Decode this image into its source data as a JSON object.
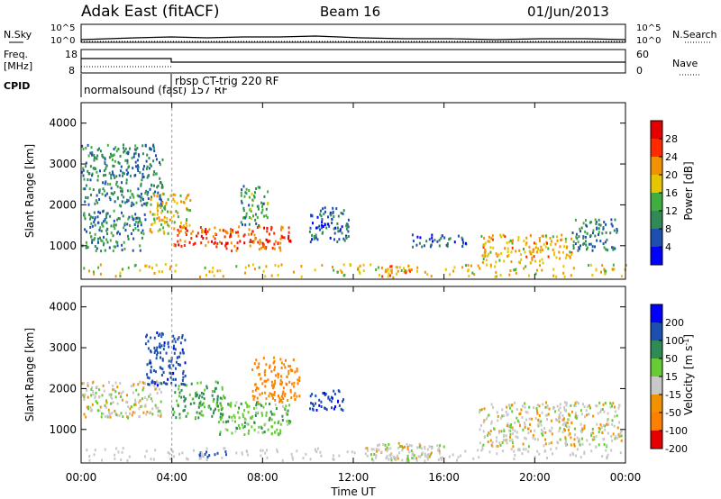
{
  "header": {
    "station": "Adak East (fitACF)",
    "beam": "Beam 16",
    "date": "01/Jun/2013"
  },
  "noise_panel": {
    "left_label": "N.Sky",
    "right_label": "N.Search",
    "ticks_top": "10^5",
    "ticks_bottom": "10^0"
  },
  "freq_panel": {
    "left_label_1": "Freq.",
    "left_label_2": "[MHz]",
    "right_label": "Nave",
    "left_ticks": [
      "18",
      "8"
    ],
    "right_ticks": [
      "60",
      "0"
    ]
  },
  "cpid": {
    "label": "CPID",
    "modes": [
      {
        "name": "normalsound (fast) 157 RF",
        "start_hour": 0
      },
      {
        "name": "rbsp CT-trig 220 RF",
        "start_hour": 4
      }
    ]
  },
  "colors": {
    "power": [
      "#0000ff",
      "#1c4fb0",
      "#2f8a55",
      "#3fae3f",
      "#e6c600",
      "#f39200",
      "#ff2a00",
      "#e60000"
    ],
    "velocity": [
      "#0000ff",
      "#1c4fb0",
      "#2f8a55",
      "#66cc33",
      "#c8c8c8",
      "#f39200",
      "#ff7f00",
      "#e60000"
    ]
  },
  "chart_data": [
    {
      "type": "heatmap",
      "title": "",
      "xlabel": "Time UT",
      "ylabel": "Slant Range [km]",
      "xlim": [
        0,
        24
      ],
      "ylim": [
        180,
        4500
      ],
      "x_ticks": [
        "00:00",
        "04:00",
        "08:00",
        "12:00",
        "16:00",
        "20:00",
        "00:00"
      ],
      "y_ticks": [
        "1000",
        "2000",
        "3000",
        "4000"
      ],
      "colorbar": {
        "label": "Power [dB]",
        "ticks": [
          "4",
          "8",
          "12",
          "16",
          "20",
          "24",
          "28"
        ],
        "range": [
          0,
          30
        ]
      },
      "regions": [
        {
          "t0": 0.0,
          "t1": 3.6,
          "r0": 2000,
          "r1": 3500,
          "value": 9
        },
        {
          "t0": 0.0,
          "t1": 2.8,
          "r0": 900,
          "r1": 1900,
          "value": 10
        },
        {
          "t0": 3.0,
          "t1": 4.8,
          "r0": 1300,
          "r1": 2300,
          "value": 19
        },
        {
          "t0": 4.0,
          "t1": 6.6,
          "r0": 1000,
          "r1": 1500,
          "value": 25
        },
        {
          "t0": 6.2,
          "t1": 9.2,
          "r0": 900,
          "r1": 1500,
          "value": 26
        },
        {
          "t0": 7.0,
          "t1": 8.2,
          "r0": 1500,
          "r1": 2500,
          "value": 12
        },
        {
          "t0": 10.0,
          "t1": 11.8,
          "r0": 1100,
          "r1": 2000,
          "value": 7
        },
        {
          "t0": 13.2,
          "t1": 14.6,
          "r0": 250,
          "r1": 600,
          "value": 22
        },
        {
          "t0": 14.5,
          "t1": 17.0,
          "r0": 1000,
          "r1": 1300,
          "value": 7
        },
        {
          "t0": 17.6,
          "t1": 21.6,
          "r0": 600,
          "r1": 1300,
          "value": 20
        },
        {
          "t0": 21.6,
          "t1": 23.6,
          "r0": 900,
          "r1": 1700,
          "value": 9
        }
      ]
    },
    {
      "type": "heatmap",
      "title": "",
      "xlabel": "Time UT",
      "ylabel": "Slant Range [km]",
      "xlim": [
        0,
        24
      ],
      "ylim": [
        180,
        4500
      ],
      "x_ticks": [
        "00:00",
        "04:00",
        "08:00",
        "12:00",
        "16:00",
        "20:00",
        "00:00"
      ],
      "y_ticks": [
        "1000",
        "2000",
        "3000",
        "4000"
      ],
      "colorbar": {
        "label": "Velocity [m s^-1]",
        "ticks": [
          "200",
          "100",
          "50",
          "15",
          "-15",
          "-50",
          "-100",
          "-200"
        ],
        "range": [
          -250,
          250
        ]
      },
      "regions": [
        {
          "t0": 0.0,
          "t1": 3.5,
          "r0": 1300,
          "r1": 2200,
          "value": 0
        },
        {
          "t0": 2.8,
          "t1": 4.6,
          "r0": 2100,
          "r1": 3400,
          "value": 180
        },
        {
          "t0": 4.0,
          "t1": 6.3,
          "r0": 1300,
          "r1": 2200,
          "value": 60
        },
        {
          "t0": 6.0,
          "t1": 9.2,
          "r0": 900,
          "r1": 1700,
          "value": 40
        },
        {
          "t0": 7.5,
          "t1": 9.6,
          "r0": 1700,
          "r1": 2800,
          "value": -60
        },
        {
          "t0": 10.0,
          "t1": 11.6,
          "r0": 1500,
          "r1": 2000,
          "value": 180
        },
        {
          "t0": 12.5,
          "t1": 16.0,
          "r0": 250,
          "r1": 700,
          "value": 0
        },
        {
          "t0": 17.5,
          "t1": 23.8,
          "r0": 600,
          "r1": 1700,
          "value": 0
        },
        {
          "t0": 5.0,
          "t1": 6.4,
          "r0": 350,
          "r1": 500,
          "value": 150
        }
      ]
    }
  ]
}
